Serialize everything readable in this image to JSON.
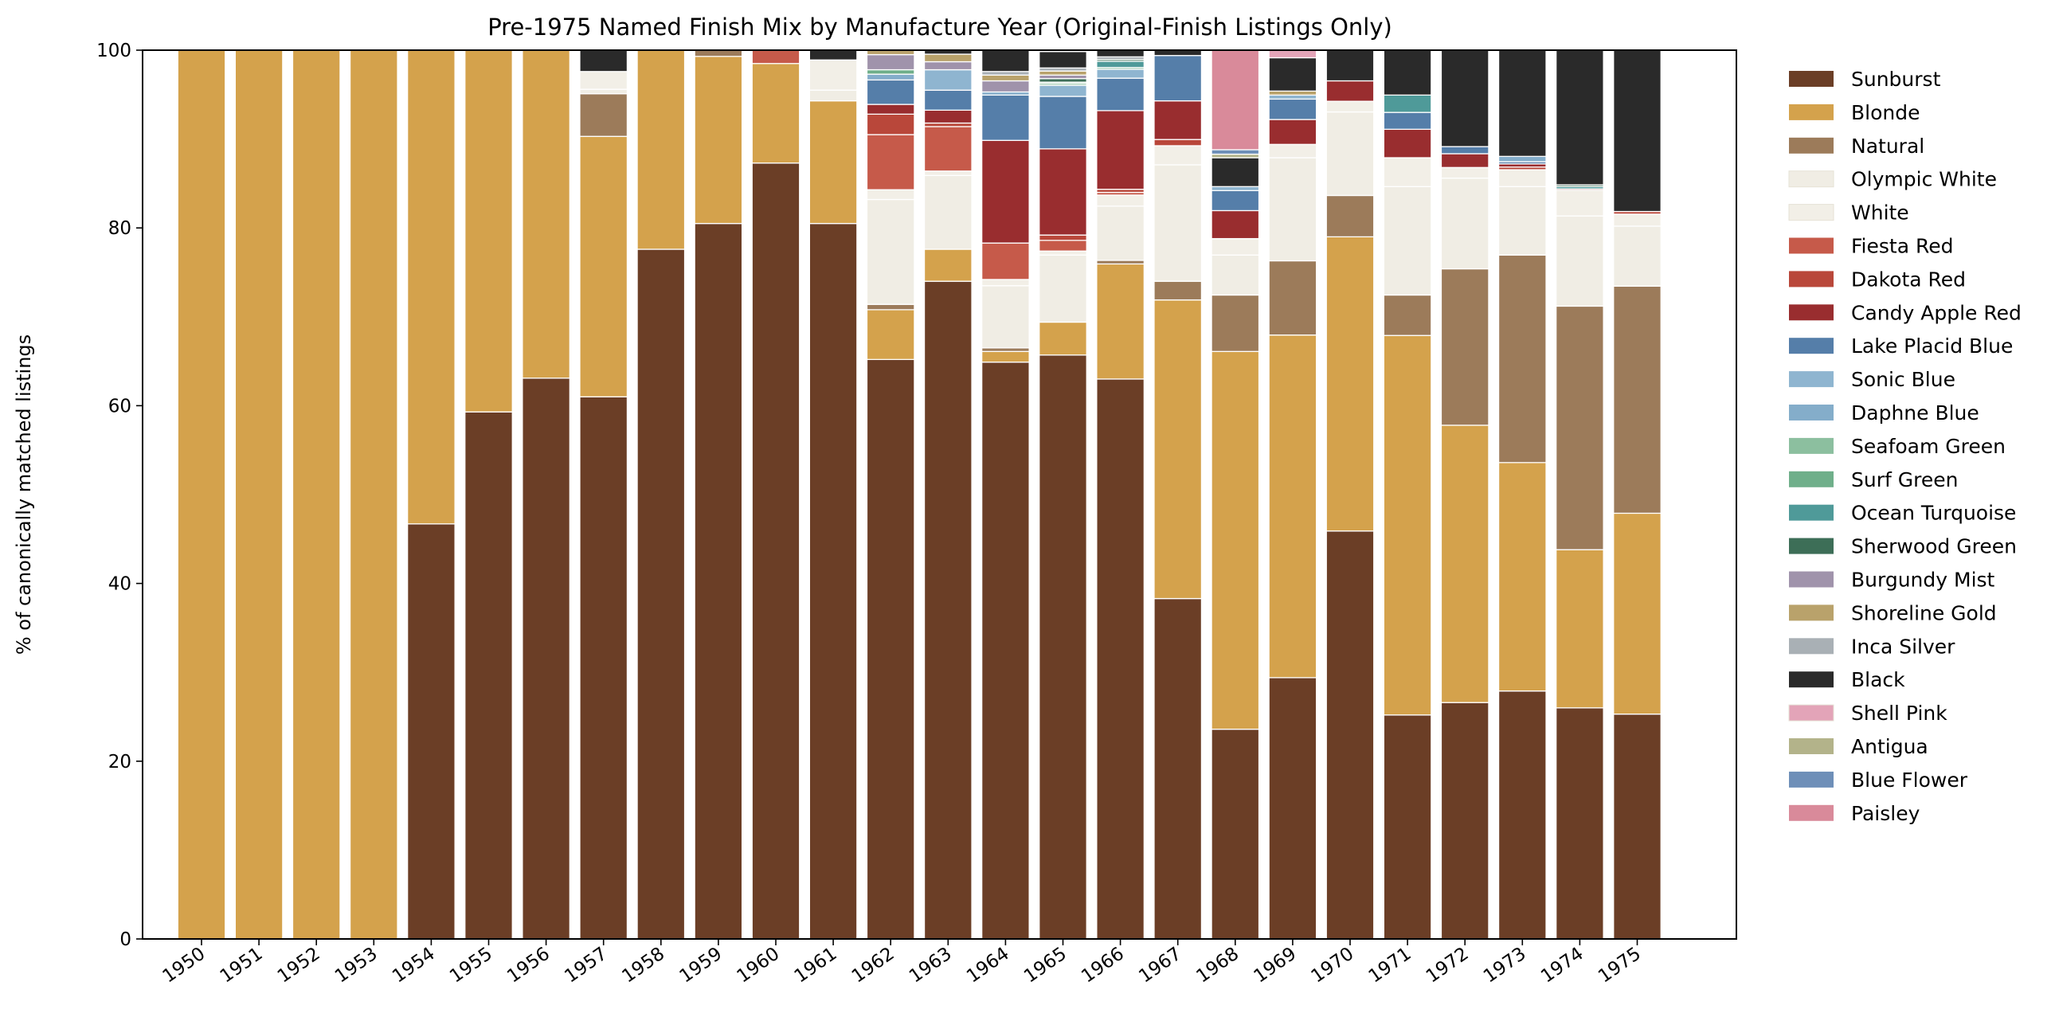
{
  "chart_data": {
    "type": "bar",
    "stacked": true,
    "title": "Pre-1975 Named Finish Mix by Manufacture Year (Original-Finish Listings Only)",
    "xlabel": "",
    "ylabel": "% of canonically matched listings",
    "ylim": [
      0,
      100
    ],
    "yticks": [
      0,
      20,
      40,
      60,
      80,
      100
    ],
    "grid": false,
    "legend_position": "right",
    "categories": [
      "1950",
      "1951",
      "1952",
      "1953",
      "1954",
      "1955",
      "1956",
      "1957",
      "1958",
      "1959",
      "1960",
      "1961",
      "1962",
      "1963",
      "1964",
      "1965",
      "1966",
      "1967",
      "1968",
      "1969",
      "1970",
      "1971",
      "1972",
      "1973",
      "1974",
      "1975"
    ],
    "series": [
      {
        "name": "Sunburst",
        "color": "#6b3e26",
        "values": [
          0,
          0,
          0,
          0,
          46.7,
          59.3,
          63.1,
          61.0,
          77.6,
          80.5,
          87.3,
          80.5,
          65.2,
          74.0,
          64.9,
          65.7,
          63.0,
          38.3,
          23.6,
          29.4,
          45.9,
          25.2,
          26.6,
          27.9,
          26.0,
          25.3
        ]
      },
      {
        "name": "Blonde",
        "color": "#d4a24c",
        "values": [
          100,
          100,
          100,
          100,
          53.3,
          40.7,
          36.9,
          29.3,
          22.4,
          18.8,
          11.2,
          13.8,
          5.6,
          3.6,
          1.2,
          3.7,
          12.95,
          33.6,
          42.5,
          38.55,
          33.1,
          42.7,
          31.2,
          25.7,
          17.8,
          22.6
        ]
      },
      {
        "name": "Natural",
        "color": "#9c7b5a",
        "values": [
          0,
          0,
          0,
          0,
          0,
          0,
          0,
          4.8,
          0,
          0.7,
          0,
          0,
          0.6,
          0,
          0.4,
          0,
          0.4,
          2.1,
          6.35,
          8.35,
          4.65,
          4.55,
          17.6,
          23.35,
          27.4,
          25.55
        ]
      },
      {
        "name": "Olympic White",
        "color": "#f0ede4",
        "values": [
          0,
          0,
          0,
          0,
          0,
          0,
          0,
          0.5,
          0,
          0,
          0,
          1.2,
          11.8,
          8.3,
          7.0,
          7.55,
          6.1,
          13.1,
          4.5,
          11.6,
          9.4,
          12.2,
          10.2,
          7.7,
          10.15,
          6.75
        ]
      },
      {
        "name": "White",
        "color": "#f2efe7",
        "values": [
          0,
          0,
          0,
          0,
          0,
          0,
          0,
          2.0,
          0,
          0,
          0,
          3.4,
          1.1,
          0.5,
          0.7,
          0.45,
          1.25,
          2.15,
          1.85,
          1.5,
          1.2,
          3.25,
          1.2,
          1.9,
          2.9,
          1.35
        ]
      },
      {
        "name": "Fiesta Red",
        "color": "#c65a4a",
        "values": [
          0,
          0,
          0,
          0,
          0,
          0,
          0,
          0,
          0,
          0,
          1.5,
          0,
          6.2,
          5.0,
          4.1,
          1.2,
          0.3,
          0,
          0,
          0,
          0,
          0,
          0,
          0,
          0,
          0
        ]
      },
      {
        "name": "Dakota Red",
        "color": "#b9473a",
        "values": [
          0,
          0,
          0,
          0,
          0,
          0,
          0,
          0,
          0,
          0,
          0,
          0,
          2.3,
          0.4,
          0,
          0.6,
          0.35,
          0.7,
          0,
          0,
          0,
          0,
          0,
          0.3,
          0,
          0.3
        ]
      },
      {
        "name": "Candy Apple Red",
        "color": "#992d2f",
        "values": [
          0,
          0,
          0,
          0,
          0,
          0,
          0,
          0,
          0,
          0,
          0,
          0,
          1.1,
          1.45,
          11.55,
          9.7,
          8.85,
          4.35,
          3.15,
          2.8,
          2.3,
          3.2,
          1.55,
          0.35,
          0.15,
          0
        ]
      },
      {
        "name": "Lake Placid Blue",
        "color": "#557ea9",
        "values": [
          0,
          0,
          0,
          0,
          0,
          0,
          0,
          0,
          0,
          0,
          0,
          0,
          2.75,
          2.25,
          5.1,
          5.9,
          3.65,
          5.1,
          2.25,
          2.3,
          0,
          1.9,
          0.8,
          0.25,
          0,
          0
        ]
      },
      {
        "name": "Sonic Blue",
        "color": "#8fb5d0",
        "values": [
          0,
          0,
          0,
          0,
          0,
          0,
          0,
          0,
          0,
          0,
          0,
          0,
          0,
          2.3,
          0,
          1.25,
          1.0,
          0,
          0.45,
          0.45,
          0,
          0,
          0,
          0,
          0,
          0
        ]
      },
      {
        "name": "Daphne Blue",
        "color": "#84adca",
        "values": [
          0,
          0,
          0,
          0,
          0,
          0,
          0,
          0,
          0,
          0,
          0,
          0,
          0.65,
          0,
          0.35,
          0,
          0,
          0,
          0,
          0,
          0,
          0,
          0,
          0.6,
          0,
          0
        ]
      },
      {
        "name": "Seafoam Green",
        "color": "#8cbf9f",
        "values": [
          0,
          0,
          0,
          0,
          0,
          0,
          0,
          0,
          0,
          0,
          0,
          0,
          0,
          0,
          0,
          0.2,
          0.2,
          0,
          0,
          0,
          0,
          0,
          0,
          0,
          0,
          0
        ]
      },
      {
        "name": "Surf Green",
        "color": "#6faf8a",
        "values": [
          0,
          0,
          0,
          0,
          0,
          0,
          0,
          0,
          0,
          0,
          0,
          0,
          0.5,
          0,
          0,
          0.15,
          0,
          0,
          0,
          0,
          0,
          0,
          0,
          0,
          0,
          0
        ]
      },
      {
        "name": "Ocean Turquoise",
        "color": "#4f9a99",
        "values": [
          0,
          0,
          0,
          0,
          0,
          0,
          0,
          0,
          0,
          0,
          0,
          0,
          0,
          0,
          0,
          0,
          0.7,
          0,
          0,
          0,
          0,
          1.95,
          0,
          0,
          0.25,
          0
        ]
      },
      {
        "name": "Sherwood Green",
        "color": "#3d6e57",
        "values": [
          0,
          0,
          0,
          0,
          0,
          0,
          0,
          0,
          0,
          0,
          0,
          0,
          0,
          0,
          0,
          0.4,
          0.2,
          0,
          0,
          0,
          0,
          0,
          0,
          0,
          0.2,
          0
        ]
      },
      {
        "name": "Burgundy Mist",
        "color": "#a093ab",
        "values": [
          0,
          0,
          0,
          0,
          0,
          0,
          0,
          0,
          0,
          0,
          0,
          0,
          1.7,
          0.9,
          1.25,
          0.4,
          0,
          0,
          0,
          0,
          0,
          0,
          0,
          0,
          0,
          0
        ]
      },
      {
        "name": "Shoreline Gold",
        "color": "#b9a26b",
        "values": [
          0,
          0,
          0,
          0,
          0,
          0,
          0,
          0,
          0,
          0,
          0,
          0,
          0.5,
          0.85,
          0.65,
          0.45,
          0,
          0,
          0,
          0.45,
          0,
          0,
          0,
          0,
          0,
          0
        ]
      },
      {
        "name": "Inca Silver",
        "color": "#a9b0b5",
        "values": [
          0,
          0,
          0,
          0,
          0,
          0,
          0,
          0,
          0,
          0,
          0,
          0,
          0,
          0,
          0.4,
          0.35,
          0.3,
          0,
          0,
          0,
          0,
          0,
          0,
          0,
          0,
          0
        ]
      },
      {
        "name": "Black",
        "color": "#2a2a2a",
        "values": [
          0,
          0,
          0,
          0,
          0,
          0,
          0,
          2.4,
          0,
          0,
          0,
          1.1,
          0,
          0.45,
          2.4,
          1.85,
          0.75,
          0.6,
          3.25,
          3.75,
          3.45,
          5.05,
          10.85,
          11.95,
          15.15,
          18.15
        ]
      },
      {
        "name": "Shell Pink",
        "color": "#e3a4b8",
        "values": [
          0,
          0,
          0,
          0,
          0,
          0,
          0,
          0,
          0,
          0,
          0,
          0,
          0,
          0,
          0,
          0.15,
          0,
          0,
          0,
          0.85,
          0,
          0,
          0,
          0,
          0,
          0
        ]
      },
      {
        "name": "Antigua",
        "color": "#b3b38a",
        "values": [
          0,
          0,
          0,
          0,
          0,
          0,
          0,
          0,
          0,
          0,
          0,
          0,
          0,
          0,
          0,
          0,
          0,
          0,
          0.4,
          0,
          0,
          0,
          0,
          0,
          0,
          0
        ]
      },
      {
        "name": "Blue Flower",
        "color": "#6e8fb8",
        "values": [
          0,
          0,
          0,
          0,
          0,
          0,
          0,
          0,
          0,
          0,
          0,
          0,
          0,
          0,
          0,
          0,
          0,
          0,
          0.5,
          0,
          0,
          0,
          0,
          0,
          0,
          0
        ]
      },
      {
        "name": "Paisley",
        "color": "#d98a9a",
        "values": [
          0,
          0,
          0,
          0,
          0,
          0,
          0,
          0,
          0,
          0,
          0,
          0,
          0,
          0,
          0,
          0,
          0,
          0,
          11.2,
          0,
          0,
          0,
          0,
          0,
          0,
          0
        ]
      }
    ]
  }
}
